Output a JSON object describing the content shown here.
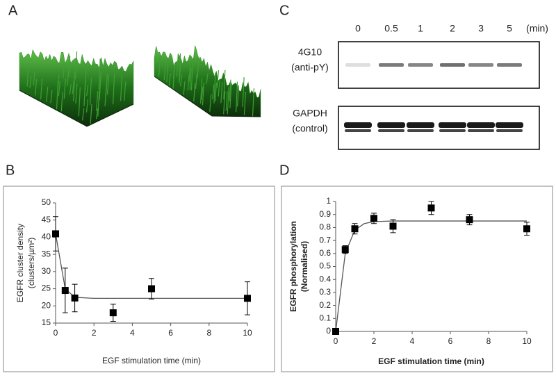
{
  "panels": {
    "a": "A",
    "b": "B",
    "c": "C",
    "d": "D"
  },
  "blot": {
    "lanes": [
      "0",
      "0.5",
      "1",
      "2",
      "3",
      "5"
    ],
    "unit": "(min)",
    "top": [
      "4G10",
      "(anti-pY)"
    ],
    "bottom": [
      "GAPDH",
      "(control)"
    ]
  },
  "chart_data": [
    {
      "type": "scatter",
      "x_label": "EGF stimulation time (min)",
      "y_label": [
        "EGFR cluster density",
        "(clusters/µm²)"
      ],
      "xlim": [
        0,
        10
      ],
      "xticks": [
        0,
        2,
        4,
        6,
        8,
        10
      ],
      "ylim": [
        15,
        50
      ],
      "yticks": [
        15,
        20,
        25,
        30,
        35,
        40,
        45,
        50
      ],
      "series": [
        {
          "color": "#000000",
          "x": [
            0,
            0.5,
            1,
            3,
            5,
            10
          ],
          "values": [
            41,
            24.5,
            22.3,
            18,
            25,
            22.2
          ],
          "errors": [
            5,
            6.5,
            4,
            2.5,
            3,
            4.8
          ]
        }
      ],
      "fit": {
        "color": "#555555",
        "x": [
          0,
          0.5,
          1,
          2,
          3,
          5,
          10
        ],
        "values": [
          41,
          25,
          22.5,
          22.2,
          22.2,
          22.2,
          22.2
        ]
      }
    },
    {
      "type": "scatter",
      "x_label": "EGF stimulation time (min)",
      "y_label": [
        "EGFR phosphorylation",
        "(Normalised)"
      ],
      "xlim": [
        0,
        10
      ],
      "xticks": [
        0,
        2,
        4,
        6,
        8,
        10
      ],
      "ylim": [
        0,
        1
      ],
      "yticks": [
        0,
        0.1,
        0.2,
        0.3,
        0.4,
        0.5,
        0.6,
        0.7,
        0.8,
        0.9,
        1
      ],
      "series": [
        {
          "color": "#000000",
          "x": [
            0,
            0.5,
            1,
            2,
            3,
            5,
            7,
            10
          ],
          "values": [
            0,
            0.63,
            0.79,
            0.87,
            0.81,
            0.95,
            0.86,
            0.79
          ],
          "errors": [
            0.02,
            0.03,
            0.04,
            0.04,
            0.05,
            0.05,
            0.04,
            0.05
          ]
        }
      ],
      "fit": {
        "color": "#555555",
        "x": [
          0,
          0.5,
          1,
          1.5,
          2,
          3,
          5,
          7,
          10
        ],
        "values": [
          0,
          0.6,
          0.78,
          0.83,
          0.845,
          0.85,
          0.85,
          0.85,
          0.85
        ]
      }
    }
  ]
}
